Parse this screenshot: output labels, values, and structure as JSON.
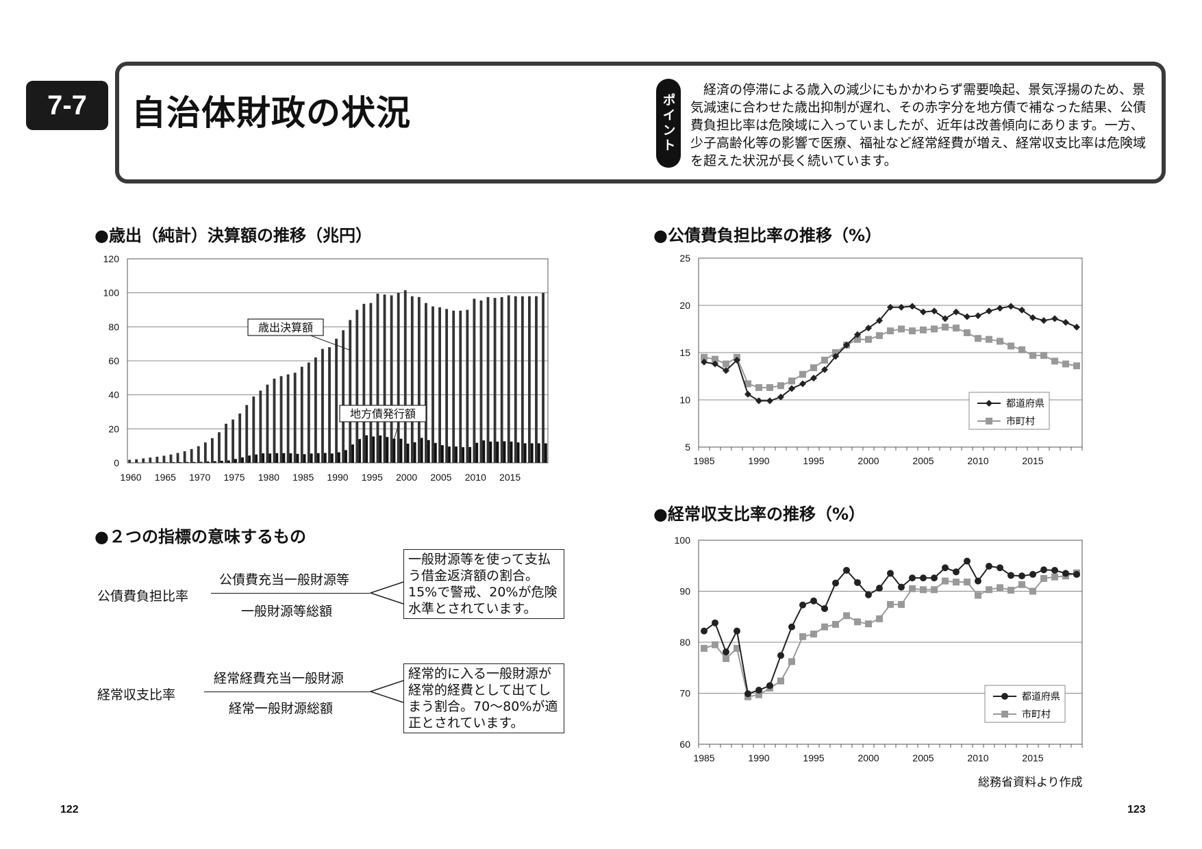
{
  "header": {
    "section_number": "7-7",
    "title": "自治体財政の状況",
    "point_label": "ポイント",
    "point_text": "　経済の停滞による歳入の減少にもかかわらず需要喚起、景気浮揚のため、景気減速に合わせた歳出抑制が遅れ、その赤字分を地方債で補なった結果、公債費負担比率は危険域に入っていましたが、近年は改善傾向にあります。一方、少子高齢化等の影響で医療、福祉など経常経費が増え、経常収支比率は危険域を超えた状況が長く続いています。"
  },
  "sections": {
    "expenditure": "●歳出（純計）決算額の推移（兆円）",
    "indicators": "●２つの指標の意味するもの",
    "debt_ratio": "●公債費負担比率の推移（%）",
    "current_ratio": "●経常収支比率の推移（%）"
  },
  "indicators": {
    "debt": {
      "label": "公債費負担比率",
      "numerator": "公債費充当一般財源等",
      "denominator": "一般財源等総額",
      "note": "一般財源等を使って支払う借金返済額の割合。15%で警戒、20%が危険水準とされています。"
    },
    "current": {
      "label": "経常収支比率",
      "numerator": "経常経費充当一般財源",
      "denominator": "経常一般財源総額",
      "note": "経常的に入る一般財源が経常的経費として出てしまう割合。70～80%が適正とされています。"
    }
  },
  "footer": {
    "source": "総務省資料より作成",
    "page_left": "122",
    "page_right": "123"
  },
  "chart_data": [
    {
      "type": "bar",
      "title": "歳出（純計）決算額の推移（兆円）",
      "ylim": [
        0,
        120
      ],
      "yticks": [
        0,
        20,
        40,
        60,
        80,
        100,
        120
      ],
      "xticks": [
        "1960",
        "1965",
        "1970",
        "1975",
        "1980",
        "1985",
        "1990",
        "1995",
        "2000",
        "2005",
        "2010",
        "2015"
      ],
      "x_start": 1960,
      "annotations": [
        "歳出決算額",
        "地方債発行額"
      ],
      "series": [
        {
          "name": "歳出決算額",
          "color": "#333333",
          "values": [
            1.8,
            2.1,
            2.6,
            3.1,
            3.6,
            4.2,
            4.9,
            5.8,
            6.8,
            8.1,
            9.8,
            12,
            14.5,
            18,
            23,
            25.5,
            29,
            34,
            39,
            42.5,
            46,
            49.5,
            51,
            52,
            53,
            56.5,
            59,
            62,
            67,
            68,
            73,
            78,
            84,
            90,
            93.5,
            94,
            99.5,
            99,
            98.5,
            100,
            101.5,
            98,
            97.5,
            94,
            92,
            91.5,
            90.5,
            89.5,
            89.5,
            90,
            96.5,
            95.5,
            97.5,
            97,
            97.5,
            98.5,
            98,
            98,
            98,
            98,
            100
          ]
        },
        {
          "name": "地方債発行額",
          "color": "#111111",
          "values": [
            0.1,
            0.1,
            0.2,
            0.2,
            0.3,
            0.3,
            0.4,
            0.4,
            0.5,
            0.5,
            0.6,
            0.8,
            1,
            1.2,
            1.4,
            2.3,
            3.2,
            4.3,
            4.9,
            5.6,
            5.5,
            5.7,
            5.7,
            5.6,
            5.3,
            5.1,
            5.5,
            5.7,
            5.8,
            5.5,
            6.2,
            7.5,
            10.8,
            14,
            16.2,
            15.5,
            16.1,
            15.2,
            14.2,
            14.2,
            11.3,
            12.1,
            14.7,
            13.4,
            11.7,
            10.4,
            9.6,
            9.6,
            9.2,
            9.3,
            11.8,
            13.2,
            12.5,
            12.5,
            12.7,
            12.5,
            12.0,
            11.5,
            11.5,
            11.5,
            11.5
          ]
        }
      ]
    },
    {
      "type": "line",
      "title": "公債費負担比率の推移（%）",
      "ylim": [
        5,
        25
      ],
      "yticks": [
        5,
        10,
        15,
        20,
        25
      ],
      "xticks": [
        "1985",
        "1990",
        "1995",
        "2000",
        "2005",
        "2010",
        "2015"
      ],
      "x_start": 1985,
      "legend_position": "bottom-right",
      "series": [
        {
          "name": "都道府県",
          "marker": "diamond",
          "color": "#222222",
          "values": [
            14.0,
            13.8,
            13.1,
            14.2,
            10.6,
            9.9,
            9.9,
            10.3,
            11.2,
            11.7,
            12.3,
            13.2,
            14.6,
            15.8,
            16.9,
            17.6,
            18.4,
            19.8,
            19.8,
            19.9,
            19.3,
            19.4,
            18.6,
            19.3,
            18.8,
            18.9,
            19.4,
            19.7,
            19.9,
            19.5,
            18.7,
            18.4,
            18.6,
            18.2,
            17.7
          ]
        },
        {
          "name": "市町村",
          "marker": "square",
          "color": "#999999",
          "values": [
            14.5,
            14.3,
            13.8,
            14.5,
            11.7,
            11.3,
            11.3,
            11.5,
            12.0,
            12.7,
            13.4,
            14.2,
            15.0,
            15.8,
            16.4,
            16.4,
            16.8,
            17.3,
            17.5,
            17.3,
            17.4,
            17.5,
            17.7,
            17.6,
            17.1,
            16.5,
            16.4,
            16.2,
            15.7,
            15.3,
            14.7,
            14.7,
            14.1,
            13.8,
            13.6
          ]
        }
      ]
    },
    {
      "type": "line",
      "title": "経常収支比率の推移（%）",
      "ylim": [
        60,
        100
      ],
      "yticks": [
        60,
        70,
        80,
        90,
        100
      ],
      "xticks": [
        "1985",
        "1990",
        "1995",
        "2000",
        "2005",
        "2010",
        "2015"
      ],
      "x_start": 1985,
      "legend_position": "bottom-right",
      "series": [
        {
          "name": "都道府県",
          "marker": "circle",
          "color": "#222222",
          "values": [
            82.2,
            83.8,
            78.1,
            82.2,
            69.9,
            70.6,
            71.5,
            77.4,
            83.0,
            87.3,
            88.1,
            86.6,
            91.6,
            94.1,
            91.7,
            89.3,
            90.6,
            93.5,
            90.8,
            92.6,
            92.6,
            92.6,
            94.6,
            93.8,
            95.9,
            92.0,
            94.9,
            94.6,
            93.1,
            93.0,
            93.3,
            94.2,
            94.1,
            93.5,
            93.3
          ]
        },
        {
          "name": "市町村",
          "marker": "square",
          "color": "#999999",
          "values": [
            78.8,
            79.5,
            76.8,
            78.8,
            69.3,
            69.7,
            71.0,
            72.4,
            76.2,
            81.1,
            81.6,
            83.0,
            83.5,
            85.2,
            84.0,
            83.6,
            84.6,
            87.4,
            87.4,
            90.5,
            90.3,
            90.3,
            92.0,
            91.8,
            91.8,
            89.2,
            90.3,
            90.7,
            90.2,
            91.3,
            90.0,
            92.5,
            92.8,
            93.0,
            93.6
          ]
        }
      ]
    }
  ]
}
